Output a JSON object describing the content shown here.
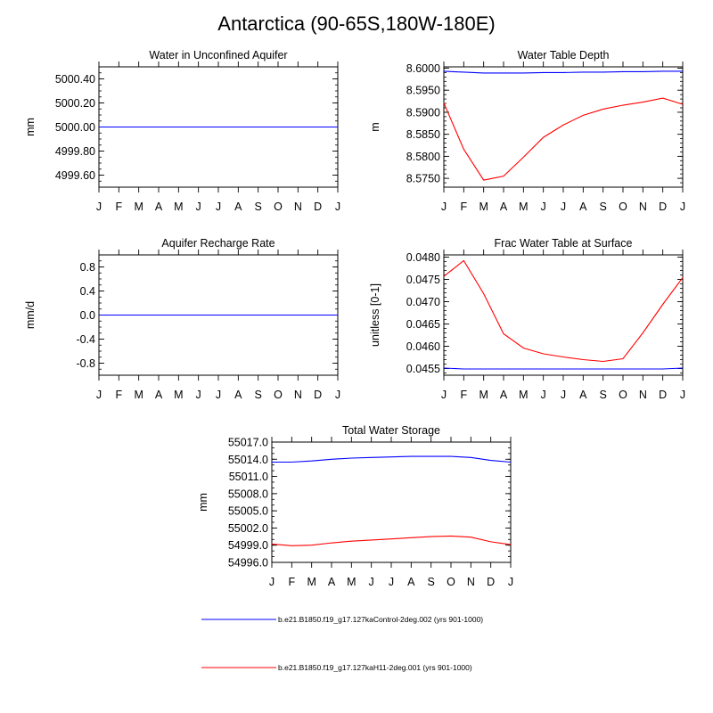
{
  "title": "Antarctica (90-65S,180W-180E)",
  "months": [
    "J",
    "F",
    "M",
    "A",
    "M",
    "J",
    "J",
    "A",
    "S",
    "O",
    "N",
    "D",
    "J"
  ],
  "series_colors": [
    "#0000ff",
    "#ff0000"
  ],
  "legend": [
    {
      "name": "b.e21.B1850.f19_g17.127kaControl-2deg.002 (yrs 901-1000)",
      "color": "#0000ff"
    },
    {
      "name": "b.e21.B1850.f19_g17.127kaH11-2deg.001 (yrs 901-1000)",
      "color": "#ff0000"
    }
  ],
  "chart_data": [
    {
      "id": "wa",
      "type": "line",
      "title": "Water in Unconfined Aquifer",
      "ylabel": "mm",
      "ylim": [
        4999.5,
        5000.5
      ],
      "yticks": [
        4999.6,
        4999.8,
        5000.0,
        5000.2,
        5000.4
      ],
      "yticklabels": [
        "4999.60",
        "4999.80",
        "5000.00",
        "5000.20",
        "5000.40"
      ],
      "yminor": 0.05,
      "series": [
        {
          "values": [
            5000,
            5000,
            5000,
            5000,
            5000,
            5000,
            5000,
            5000,
            5000,
            5000,
            5000,
            5000,
            5000
          ]
        },
        {
          "values": [
            5000,
            5000,
            5000,
            5000,
            5000,
            5000,
            5000,
            5000,
            5000,
            5000,
            5000,
            5000,
            5000
          ]
        }
      ]
    },
    {
      "id": "wtd",
      "type": "line",
      "title": "Water Table Depth",
      "ylabel": "m",
      "ylim": [
        8.573,
        8.6003
      ],
      "yticks": [
        8.575,
        8.58,
        8.585,
        8.59,
        8.595,
        8.6
      ],
      "yticklabels": [
        "8.5750",
        "8.5800",
        "8.5850",
        "8.5900",
        "8.5950",
        "8.6000"
      ],
      "yminor": 0.001,
      "series": [
        {
          "values": [
            8.5993,
            8.5991,
            8.5989,
            8.5989,
            8.5989,
            8.599,
            8.599,
            8.5991,
            8.5991,
            8.5992,
            8.5992,
            8.5993,
            8.5993
          ]
        },
        {
          "values": [
            8.5921,
            8.5816,
            8.5746,
            8.5755,
            8.5798,
            8.5843,
            8.5871,
            8.5893,
            8.5907,
            8.5916,
            8.5923,
            8.5932,
            8.5918
          ]
        }
      ]
    },
    {
      "id": "qr",
      "type": "line",
      "title": "Aquifer Recharge Rate",
      "ylabel": "mm/d",
      "ylim": [
        -1.0,
        1.0
      ],
      "yticks": [
        -0.8,
        -0.4,
        0.0,
        0.4,
        0.8
      ],
      "yticklabels": [
        "-0.8",
        "-0.4",
        "0.0",
        "0.4",
        "0.8"
      ],
      "yminor": 0.1,
      "series": [
        {
          "values": [
            0,
            0,
            0,
            0,
            0,
            0,
            0,
            0,
            0,
            0,
            0,
            0,
            0
          ]
        },
        {
          "values": [
            0,
            0,
            0,
            0,
            0,
            0,
            0,
            0,
            0,
            0,
            0,
            0,
            0
          ]
        }
      ]
    },
    {
      "id": "fwt",
      "type": "line",
      "title": "Frac Water Table at Surface",
      "ylabel": "unitless [0-1]",
      "ylim": [
        0.04535,
        0.04805
      ],
      "yticks": [
        0.0455,
        0.046,
        0.0465,
        0.047,
        0.0475,
        0.048
      ],
      "yticklabels": [
        "0.0455",
        "0.0460",
        "0.0465",
        "0.0470",
        "0.0475",
        "0.0480"
      ],
      "yminor": 0.0001,
      "series": [
        {
          "values": [
            0.04551,
            0.04549,
            0.04549,
            0.04549,
            0.04549,
            0.04549,
            0.04549,
            0.04549,
            0.04549,
            0.04549,
            0.04549,
            0.04549,
            0.04551
          ]
        },
        {
          "values": [
            0.04757,
            0.04792,
            0.04718,
            0.04628,
            0.04596,
            0.04583,
            0.04576,
            0.0457,
            0.04566,
            0.04572,
            0.0463,
            0.04694,
            0.04754
          ]
        }
      ]
    },
    {
      "id": "tws",
      "type": "line",
      "title": "Total Water Storage",
      "ylabel": "mm",
      "ylim": [
        54996.0,
        55017.0
      ],
      "yticks": [
        54996,
        54999,
        55002,
        55005,
        55008,
        55011,
        55014,
        55017
      ],
      "yticklabels": [
        "54996.0",
        "54999.0",
        "55002.0",
        "55005.0",
        "55008.0",
        "55011.0",
        "55014.0",
        "55017.0"
      ],
      "yminor": 1,
      "series": [
        {
          "values": [
            55013.5,
            55013.5,
            55013.7,
            55014.0,
            55014.2,
            55014.3,
            55014.4,
            55014.5,
            55014.5,
            55014.5,
            55014.3,
            55013.8,
            55013.5
          ]
        },
        {
          "values": [
            54999.2,
            54998.9,
            54999.0,
            54999.4,
            54999.7,
            54999.9,
            55000.1,
            55000.3,
            55000.5,
            55000.6,
            55000.4,
            54999.6,
            54999.1
          ]
        }
      ]
    }
  ]
}
